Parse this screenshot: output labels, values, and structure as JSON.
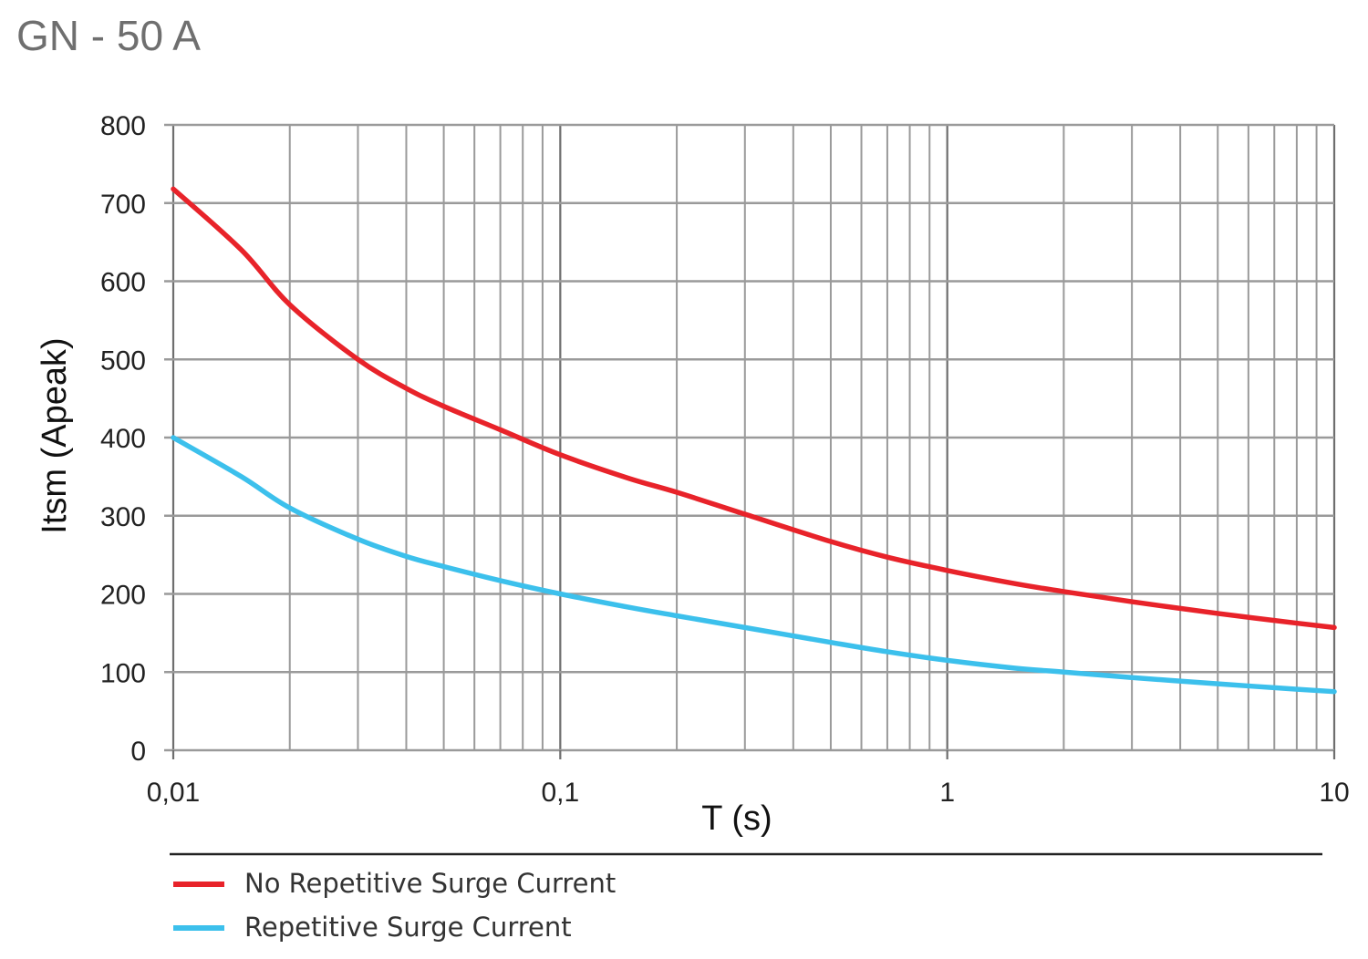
{
  "chart_data": {
    "type": "line",
    "title": "GN - 50 A",
    "xlabel": "T (s)",
    "ylabel": "Itsm (Apeak)",
    "x_scale": "log",
    "xlim": [
      0.01,
      10
    ],
    "ylim": [
      0,
      800
    ],
    "x_ticks": [
      {
        "value": 0.01,
        "label": "0,01"
      },
      {
        "value": 0.1,
        "label": "0,1"
      },
      {
        "value": 1,
        "label": "1"
      },
      {
        "value": 10,
        "label": "10"
      }
    ],
    "y_ticks": [
      {
        "value": 0,
        "label": "0"
      },
      {
        "value": 100,
        "label": "100"
      },
      {
        "value": 200,
        "label": "200"
      },
      {
        "value": 300,
        "label": "300"
      },
      {
        "value": 400,
        "label": "400"
      },
      {
        "value": 500,
        "label": "500"
      },
      {
        "value": 600,
        "label": "600"
      },
      {
        "value": 700,
        "label": "700"
      },
      {
        "value": 800,
        "label": "800"
      }
    ],
    "grid": true,
    "legend_position": "bottom",
    "series": [
      {
        "name": "No Repetitive Surge Current",
        "color": "#e8232a",
        "points": [
          {
            "x": 0.01,
            "y": 718
          },
          {
            "x": 0.015,
            "y": 640
          },
          {
            "x": 0.02,
            "y": 570
          },
          {
            "x": 0.03,
            "y": 500
          },
          {
            "x": 0.04,
            "y": 463
          },
          {
            "x": 0.05,
            "y": 440
          },
          {
            "x": 0.07,
            "y": 410
          },
          {
            "x": 0.1,
            "y": 378
          },
          {
            "x": 0.15,
            "y": 348
          },
          {
            "x": 0.2,
            "y": 330
          },
          {
            "x": 0.3,
            "y": 302
          },
          {
            "x": 0.5,
            "y": 267
          },
          {
            "x": 0.7,
            "y": 247
          },
          {
            "x": 1,
            "y": 230
          },
          {
            "x": 1.5,
            "y": 213
          },
          {
            "x": 2,
            "y": 203
          },
          {
            "x": 3,
            "y": 190
          },
          {
            "x": 5,
            "y": 175
          },
          {
            "x": 7,
            "y": 166
          },
          {
            "x": 10,
            "y": 157
          }
        ]
      },
      {
        "name": "Repetitive Surge Current",
        "color": "#3cc0ec",
        "points": [
          {
            "x": 0.01,
            "y": 400
          },
          {
            "x": 0.015,
            "y": 350
          },
          {
            "x": 0.02,
            "y": 310
          },
          {
            "x": 0.03,
            "y": 270
          },
          {
            "x": 0.04,
            "y": 248
          },
          {
            "x": 0.05,
            "y": 235
          },
          {
            "x": 0.07,
            "y": 217
          },
          {
            "x": 0.1,
            "y": 200
          },
          {
            "x": 0.15,
            "y": 183
          },
          {
            "x": 0.2,
            "y": 172
          },
          {
            "x": 0.3,
            "y": 157
          },
          {
            "x": 0.5,
            "y": 138
          },
          {
            "x": 0.7,
            "y": 126
          },
          {
            "x": 1,
            "y": 115
          },
          {
            "x": 1.5,
            "y": 105
          },
          {
            "x": 2,
            "y": 100
          },
          {
            "x": 3,
            "y": 93
          },
          {
            "x": 5,
            "y": 85
          },
          {
            "x": 7,
            "y": 80
          },
          {
            "x": 10,
            "y": 75
          }
        ]
      }
    ]
  }
}
